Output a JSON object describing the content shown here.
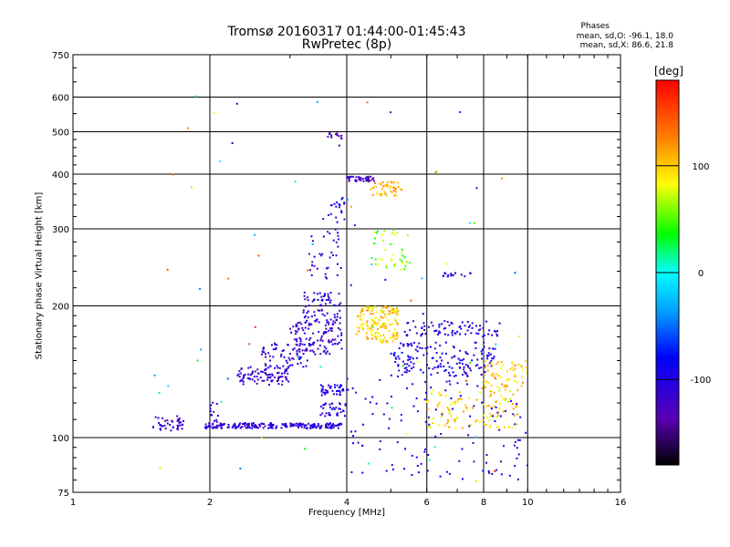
{
  "chart_data": {
    "type": "scatter",
    "title": "Tromsø 20160317 01:44:00-01:45:43",
    "subtitle": "RwPretec (8p)",
    "stats": {
      "title": "Phases",
      "o_mode": "mean, sd,O:  -96.1, 18.0",
      "x_mode": "mean, sd,X:   86.6, 21.8"
    },
    "xlabel": "Frequency [MHz]",
    "ylabel": "Stationary phase Virtual Height [km]",
    "x_scale": "log",
    "y_scale": "log",
    "xlim": [
      1,
      16
    ],
    "ylim": [
      75,
      750
    ],
    "xticks": [
      1,
      2,
      4,
      6,
      8,
      10,
      16
    ],
    "yticks": [
      75,
      100,
      200,
      300,
      400,
      500,
      600,
      750
    ],
    "grid": true,
    "colorbar": {
      "label": "[deg]",
      "range": [
        -180,
        180
      ],
      "ticks": [
        100,
        0,
        -100
      ]
    },
    "clusters": [
      {
        "x": [
          1.5,
          1.75
        ],
        "y": [
          103,
          112
        ],
        "phase": -115,
        "n": 40
      },
      {
        "x": [
          1.95,
          3.9
        ],
        "y": [
          105,
          108
        ],
        "phase": -110,
        "n": 220
      },
      {
        "x": [
          2.0,
          2.1
        ],
        "y": [
          106,
          122
        ],
        "phase": -110,
        "n": 14
      },
      {
        "x": [
          2.3,
          3.0
        ],
        "y": [
          132,
          145
        ],
        "phase": -115,
        "n": 90
      },
      {
        "x": [
          2.6,
          3.3
        ],
        "y": [
          145,
          165
        ],
        "phase": -110,
        "n": 60
      },
      {
        "x": [
          3.0,
          3.9
        ],
        "y": [
          155,
          185
        ],
        "phase": -115,
        "n": 120
      },
      {
        "x": [
          3.2,
          3.9
        ],
        "y": [
          185,
          215
        ],
        "phase": -110,
        "n": 70
      },
      {
        "x": [
          3.3,
          3.9
        ],
        "y": [
          230,
          300
        ],
        "phase": -110,
        "n": 35
      },
      {
        "x": [
          3.55,
          4.0
        ],
        "y": [
          310,
          360
        ],
        "phase": -105,
        "n": 20
      },
      {
        "x": [
          3.5,
          4.0
        ],
        "y": [
          125,
          132
        ],
        "phase": -105,
        "n": 40
      },
      {
        "x": [
          3.5,
          4.0
        ],
        "y": [
          112,
          120
        ],
        "phase": -110,
        "n": 35
      },
      {
        "x": [
          4.0,
          4.6
        ],
        "y": [
          385,
          395
        ],
        "phase": -125,
        "n": 45
      },
      {
        "x": [
          3.6,
          3.9
        ],
        "y": [
          480,
          500
        ],
        "phase": -140,
        "n": 12
      },
      {
        "x": [
          4.2,
          5.2
        ],
        "y": [
          165,
          200
        ],
        "phase": 100,
        "n": 160
      },
      {
        "x": [
          4.5,
          5.3
        ],
        "y": [
          355,
          385
        ],
        "phase": 110,
        "n": 45
      },
      {
        "x": [
          4.6,
          5.5
        ],
        "y": [
          240,
          300
        ],
        "phase": 60,
        "n": 40
      },
      {
        "x": [
          5.0,
          8.5
        ],
        "y": [
          138,
          165
        ],
        "phase": -100,
        "n": 160
      },
      {
        "x": [
          5.3,
          8.8
        ],
        "y": [
          170,
          185
        ],
        "phase": -105,
        "n": 80
      },
      {
        "x": [
          6.0,
          9.5
        ],
        "y": [
          105,
          130
        ],
        "phase": 95,
        "n": 120
      },
      {
        "x": [
          8.0,
          10.0
        ],
        "y": [
          130,
          150
        ],
        "phase": 105,
        "n": 60
      },
      {
        "x": [
          4.0,
          10.0
        ],
        "y": [
          80,
          140
        ],
        "phase": -100,
        "n": 120
      },
      {
        "x": [
          6.5,
          7.5
        ],
        "y": [
          232,
          238
        ],
        "phase": -105,
        "n": 15
      },
      {
        "x": [
          1.5,
          10.5
        ],
        "y": [
          78,
          630
        ],
        "phase": 0,
        "n": 70
      }
    ]
  }
}
